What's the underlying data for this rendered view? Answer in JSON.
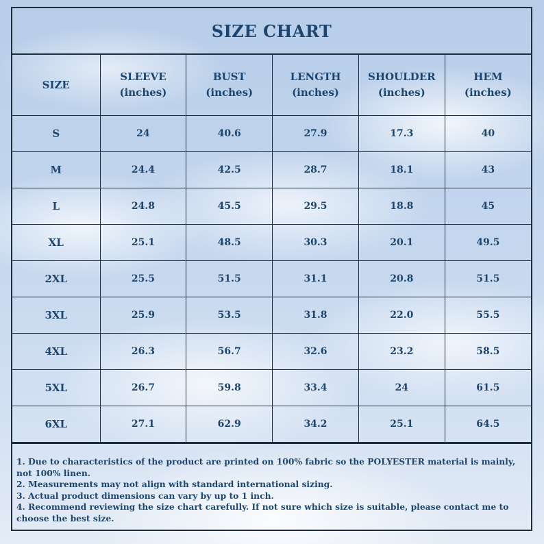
{
  "title": "SIZE CHART",
  "table": {
    "headers": [
      {
        "label": "SIZE",
        "unit": ""
      },
      {
        "label": "SLEEVE",
        "unit": "(inches)"
      },
      {
        "label": "BUST",
        "unit": "(inches)"
      },
      {
        "label": "LENGTH",
        "unit": "(inches)"
      },
      {
        "label": "SHOULDER",
        "unit": "(inches)"
      },
      {
        "label": "HEM",
        "unit": "(inches)"
      }
    ],
    "rows": [
      [
        "S",
        "24",
        "40.6",
        "27.9",
        "17.3",
        "40"
      ],
      [
        "M",
        "24.4",
        "42.5",
        "28.7",
        "18.1",
        "43"
      ],
      [
        "L",
        "24.8",
        "45.5",
        "29.5",
        "18.8",
        "45"
      ],
      [
        "XL",
        "25.1",
        "48.5",
        "30.3",
        "20.1",
        "49.5"
      ],
      [
        "2XL",
        "25.5",
        "51.5",
        "31.1",
        "20.8",
        "51.5"
      ],
      [
        "3XL",
        "25.9",
        "53.5",
        "31.8",
        "22.0",
        "55.5"
      ],
      [
        "4XL",
        "26.3",
        "56.7",
        "32.6",
        "23.2",
        "58.5"
      ],
      [
        "5XL",
        "26.7",
        "59.8",
        "33.4",
        "24",
        "61.5"
      ],
      [
        "6XL",
        "27.1",
        "62.9",
        "34.2",
        "25.1",
        "64.5"
      ]
    ]
  },
  "notes": [
    "1. Due to characteristics of the product are printed on 100% fabric so the POLYESTER material is mainly, not 100% linen.",
    "2. Measurements may not align with standard international sizing.",
    "3. Actual product dimensions can vary by up to 1 inch.",
    "4. Recommend reviewing the size chart carefully. If not sure which size is suitable, please contact me to choose the best size."
  ],
  "colors": {
    "text": "#1c4670",
    "border": "#1d2d3d",
    "sky": "#c3d6ee"
  }
}
